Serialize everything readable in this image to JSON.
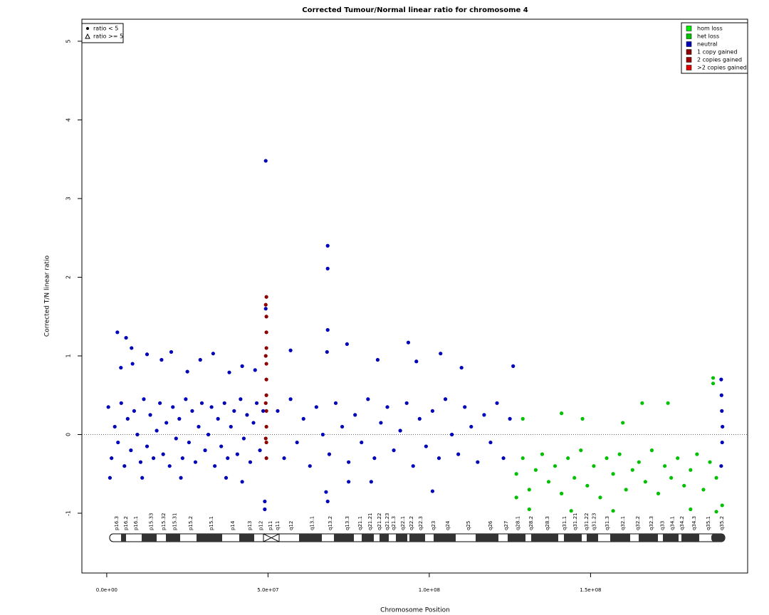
{
  "chart_data": {
    "type": "scatter",
    "title": "Corrected Tumour/Normal linear ratio for chromosome  4",
    "x_label": "Chromosome Position",
    "y_label": "Corrected T/N linear ratio",
    "xlim": [
      -7700000.0,
      198700000.0
    ],
    "ylim": [
      -1.76,
      5.28
    ],
    "xticks": [
      {
        "value": 0,
        "label": "0.0e+00"
      },
      {
        "value": 50000000.0,
        "label": "5.0e+07"
      },
      {
        "value": 100000000.0,
        "label": "1.0e+08"
      },
      {
        "value": 150000000.0,
        "label": "1.5e+08"
      }
    ],
    "yticks": [
      -1,
      0,
      1,
      2,
      3,
      4,
      5
    ],
    "hline": 0,
    "shape_legend": [
      "ratio < 5",
      "ratio >= 5"
    ],
    "series": [
      {
        "name": "hom loss",
        "color": "#00ee00",
        "x": [],
        "values": []
      },
      {
        "name": "het loss",
        "color": "#00c000",
        "x": [
          127000000.0,
          129000000.0,
          131000000.0,
          133000000.0,
          135000000.0,
          137000000.0,
          139000000.0,
          141000000.0,
          143000000.0,
          145000000.0,
          147000000.0,
          149000000.0,
          151000000.0,
          153000000.0,
          155000000.0,
          157000000.0,
          159000000.0,
          161000000.0,
          163000000.0,
          165000000.0,
          167000000.0,
          169000000.0,
          171000000.0,
          173000000.0,
          175000000.0,
          177000000.0,
          179000000.0,
          181000000.0,
          183000000.0,
          185000000.0,
          187000000.0,
          189000000.0,
          190800000.0,
          129000000.0,
          141000000.0,
          147500000.0,
          160000000.0,
          166000000.0,
          174000000.0,
          188000000.0,
          188000000.0,
          131000000.0,
          144000000.0,
          157000000.0,
          181000000.0,
          189000000.0,
          127000000.0
        ],
        "values": [
          -0.5,
          -0.3,
          -0.7,
          -0.45,
          -0.25,
          -0.6,
          -0.4,
          -0.75,
          -0.3,
          -0.55,
          -0.2,
          -0.65,
          -0.4,
          -0.8,
          -0.3,
          -0.5,
          -0.25,
          -0.7,
          -0.45,
          -0.35,
          -0.6,
          -0.2,
          -0.75,
          -0.4,
          -0.55,
          -0.3,
          -0.65,
          -0.45,
          -0.25,
          -0.7,
          -0.35,
          -0.55,
          -0.9,
          0.2,
          0.27,
          0.2,
          0.15,
          0.4,
          0.4,
          0.72,
          0.65,
          -0.95,
          -0.97,
          -0.97,
          -0.95,
          -0.98,
          -0.8
        ]
      },
      {
        "name": "neutral",
        "color": "#0000b8",
        "x": [
          500000.0,
          1500000.0,
          2500000.0,
          3500000.0,
          4500000.0,
          5500000.0,
          6500000.0,
          7500000.0,
          8500000.0,
          9500000.0,
          10500000.0,
          11500000.0,
          12500000.0,
          13500000.0,
          14500000.0,
          15500000.0,
          16500000.0,
          17500000.0,
          18500000.0,
          19500000.0,
          20500000.0,
          21500000.0,
          22500000.0,
          23500000.0,
          24500000.0,
          25500000.0,
          26500000.0,
          27500000.0,
          28500000.0,
          29500000.0,
          30500000.0,
          31500000.0,
          32500000.0,
          33500000.0,
          34500000.0,
          35500000.0,
          36500000.0,
          37500000.0,
          38500000.0,
          39500000.0,
          40500000.0,
          41500000.0,
          42500000.0,
          43500000.0,
          44500000.0,
          45500000.0,
          46500000.0,
          47500000.0,
          48500000.0,
          3300000.0,
          6000000.0,
          7700000.0,
          12500000.0,
          20000000.0,
          33000000.0,
          29000000.0,
          42000000.0,
          17000000.0,
          4400000.0,
          8000000.0,
          25000000.0,
          38000000.0,
          46000000.0,
          1000000.0,
          11000000.0,
          23000000.0,
          37000000.0,
          42000000.0,
          49300000.0,
          49300000.0,
          49000000.0,
          49000000.0,
          53000000.0,
          55000000.0,
          57000000.0,
          59000000.0,
          61000000.0,
          63000000.0,
          65000000.0,
          67000000.0,
          69000000.0,
          71000000.0,
          73000000.0,
          75000000.0,
          77000000.0,
          79000000.0,
          81000000.0,
          83000000.0,
          85000000.0,
          87000000.0,
          89000000.0,
          91000000.0,
          93000000.0,
          95000000.0,
          97000000.0,
          99000000.0,
          101000000.0,
          103000000.0,
          105000000.0,
          107000000.0,
          109000000.0,
          111000000.0,
          113000000.0,
          115000000.0,
          117000000.0,
          119000000.0,
          121000000.0,
          123000000.0,
          125000000.0,
          57000000.0,
          68500000.0,
          68500000.0,
          68500000.0,
          68300000.0,
          68500000.0,
          68000000.0,
          74500000.0,
          84000000.0,
          93500000.0,
          96000000.0,
          103500000.0,
          110000000.0,
          126000000.0,
          101000000.0,
          75000000.0,
          82000000.0,
          190500000.0,
          190500000.0,
          190700000.0,
          190800000.0,
          190600000.0,
          190900000.0
        ],
        "values": [
          0.35,
          -0.3,
          0.1,
          -0.1,
          0.4,
          -0.4,
          0.2,
          -0.2,
          0.3,
          0.0,
          -0.35,
          0.45,
          -0.15,
          0.25,
          -0.3,
          0.05,
          0.4,
          -0.25,
          0.15,
          -0.4,
          0.35,
          -0.05,
          0.2,
          -0.3,
          0.45,
          -0.1,
          0.3,
          -0.35,
          0.1,
          0.4,
          -0.2,
          0.0,
          0.35,
          -0.4,
          0.2,
          -0.15,
          0.4,
          -0.3,
          0.1,
          0.3,
          -0.25,
          0.45,
          -0.05,
          0.25,
          -0.35,
          0.15,
          0.4,
          -0.2,
          0.3,
          1.3,
          1.23,
          1.1,
          1.02,
          1.05,
          1.03,
          0.95,
          0.87,
          0.95,
          0.85,
          0.9,
          0.8,
          0.79,
          0.82,
          -0.55,
          -0.55,
          -0.55,
          -0.55,
          -0.6,
          3.48,
          1.6,
          -0.95,
          -0.85,
          0.3,
          -0.3,
          0.45,
          -0.1,
          0.2,
          -0.4,
          0.35,
          0.0,
          -0.25,
          0.4,
          0.1,
          -0.35,
          0.25,
          -0.1,
          0.45,
          -0.3,
          0.15,
          0.35,
          -0.2,
          0.05,
          0.4,
          -0.4,
          0.2,
          -0.15,
          0.3,
          -0.3,
          0.45,
          0.0,
          -0.25,
          0.35,
          0.1,
          -0.35,
          0.25,
          -0.1,
          0.4,
          -0.3,
          0.2,
          1.07,
          2.4,
          2.11,
          1.33,
          1.05,
          -0.85,
          -0.73,
          1.15,
          0.95,
          1.17,
          0.93,
          1.03,
          0.85,
          0.87,
          -0.72,
          -0.6,
          -0.6,
          0.7,
          -0.4,
          0.3,
          -0.1,
          0.5,
          0.1
        ]
      },
      {
        "name": "1 copy gained",
        "color": "#8b0000",
        "x": [
          49500000.0,
          49500000.0,
          49500000.0,
          49500000.0,
          49500000.0,
          49500000.0,
          49500000.0,
          49500000.0,
          49500000.0,
          49500000.0,
          49500000.0,
          49300000.0,
          49300000.0,
          49300000.0,
          49300000.0
        ],
        "values": [
          1.75,
          1.5,
          1.3,
          1.1,
          0.9,
          0.7,
          0.5,
          0.3,
          0.1,
          -0.1,
          -0.3,
          1.65,
          1.0,
          0.4,
          -0.05
        ]
      },
      {
        "name": "2 copies gained",
        "color": "#a00000",
        "x": [],
        "values": []
      },
      {
        "name": ">2 copies gained",
        "color": "#e00000",
        "x": [],
        "values": []
      }
    ],
    "band_labels": [
      "p16.3",
      "p16.2",
      "p16.1",
      "p15.33",
      "p15.32",
      "p15.31",
      "p15.2",
      "p15.1",
      "p14",
      "p13",
      "p12",
      "p11",
      "q11",
      "q12",
      "q13.1",
      "q13.2",
      "q13.3",
      "q21.1",
      "q21.21",
      "q21.22",
      "q21.23",
      "q21.3",
      "q22.1",
      "q22.2",
      "q22.3",
      "q23",
      "q24",
      "q25",
      "q26",
      "q27",
      "q28.1",
      "q28.2",
      "q28.3",
      "q31.1",
      "q31.21",
      "q31.22",
      "q31.23",
      "q31.3",
      "q32.1",
      "q32.2",
      "q32.3",
      "q33",
      "q34.1",
      "q34.2",
      "q34.3",
      "q35.1",
      "q35.2"
    ],
    "band_positions": [
      2400000.0,
      5300000.0,
      8400000.0,
      13200000.0,
      17000000.0,
      20500000.0,
      25400000.0,
      31800000.0,
      38400000.0,
      43700000.0,
      47200000.0,
      50100000.0,
      52300000.0,
      56500000.0,
      63100000.0,
      68700000.0,
      74000000.0,
      77900000.0,
      81000000.0,
      83900000.0,
      86300000.0,
      88300000.0,
      91200000.0,
      93800000.0,
      96700000.0,
      100700000.0,
      105100000.0,
      111500000.0,
      118300000.0,
      123200000.0,
      126900000.0,
      130900000.0,
      136000000.0,
      141300000.0,
      144600000.0,
      148100000.0,
      150500000.0,
      154500000.0,
      159400000.0,
      164000000.0,
      168200000.0,
      171700000.0,
      174800000.0,
      177700000.0,
      181500000.0,
      185900000.0,
      190100000.0
    ]
  }
}
